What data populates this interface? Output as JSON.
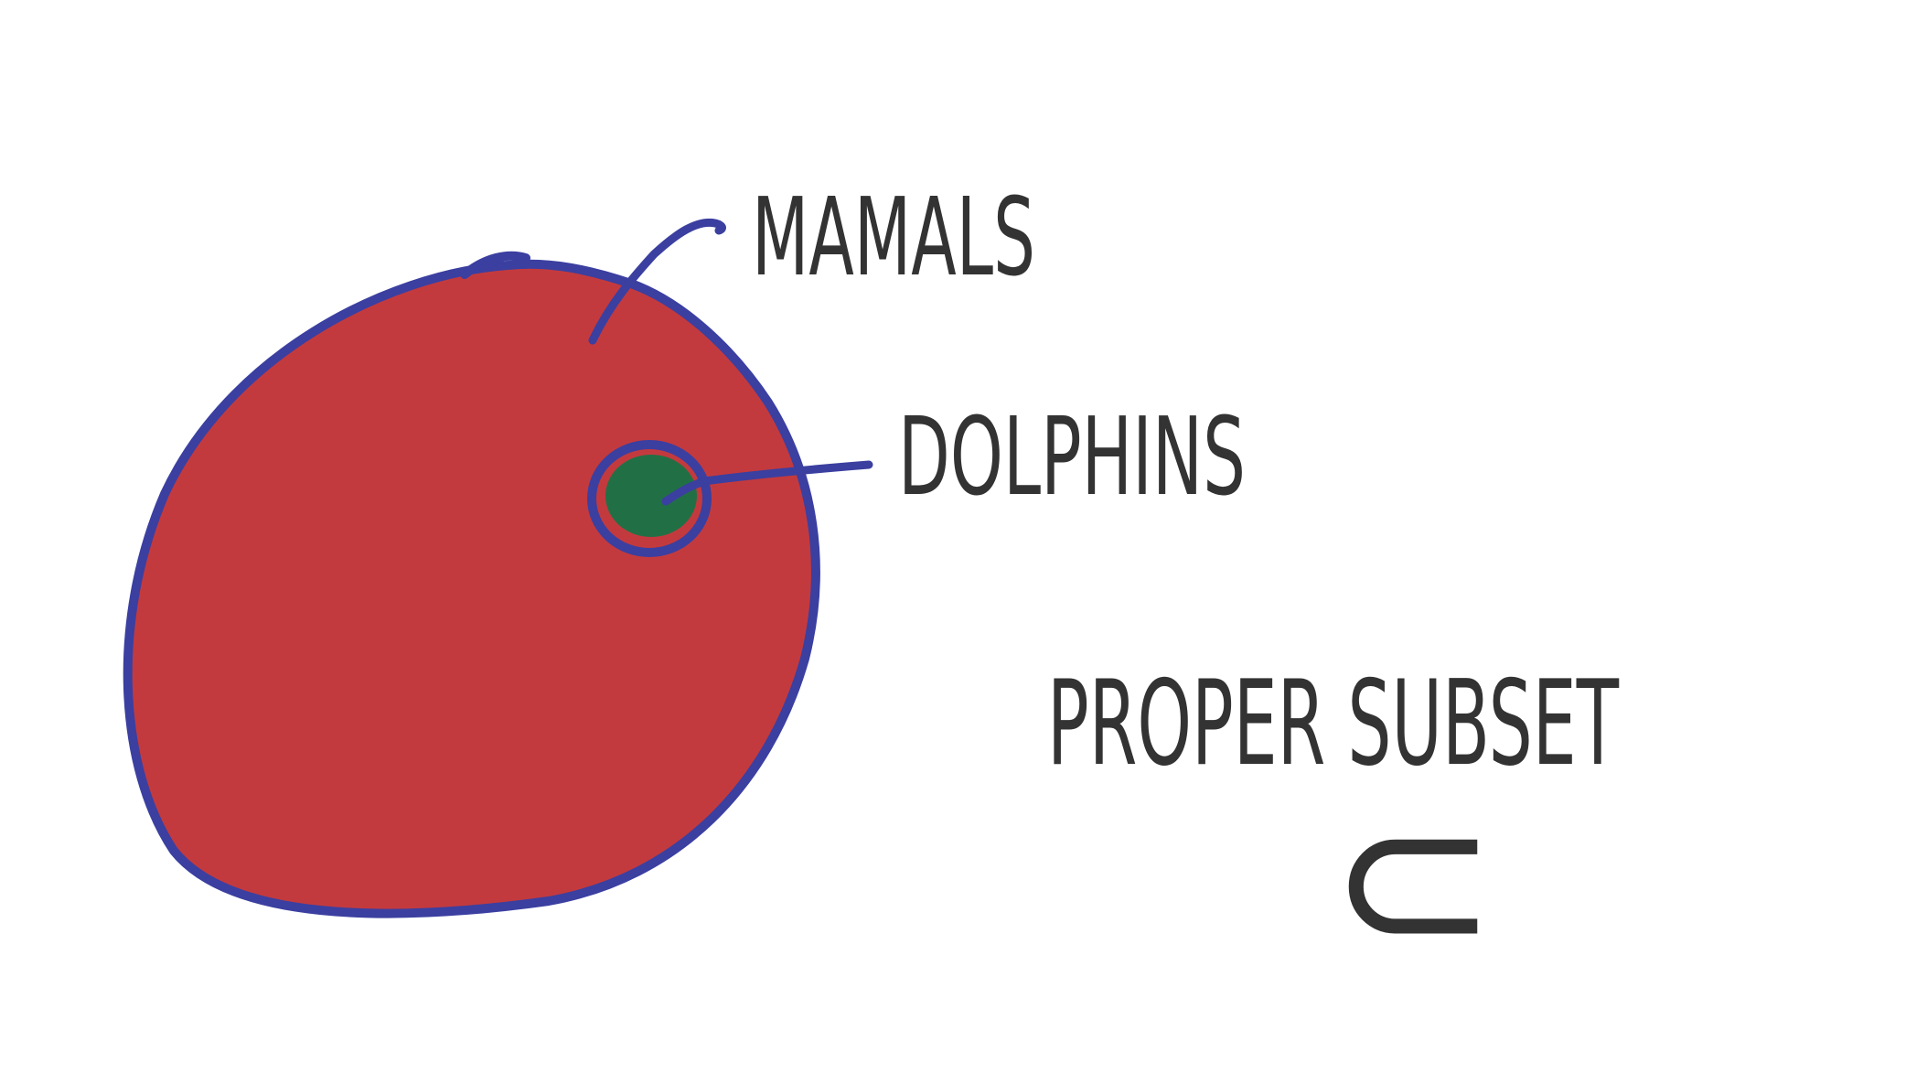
{
  "diagram": {
    "type": "euler-subset",
    "outer_set": {
      "label": "MAMALS",
      "fill_color": "#c33a3e",
      "outline_color": "#3b3fa0"
    },
    "inner_set": {
      "label": "DOLPHINS",
      "fill_color": "#217045",
      "outline_color": "#3b3fa0"
    },
    "relation": {
      "name": "PROPER SUBSET",
      "symbol": "⊂"
    },
    "leader_color": "#3b3fa0",
    "text_color": "#333333"
  }
}
